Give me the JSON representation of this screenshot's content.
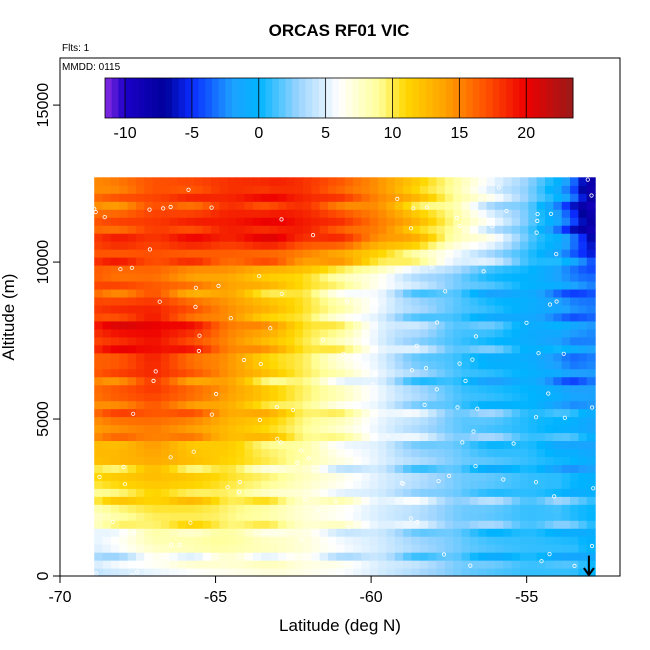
{
  "chart_data": {
    "type": "heatmap",
    "title": "ORCAS RF01 VIC",
    "corner_labels": [
      "Flts: 1",
      "MMDD: 0115"
    ],
    "xlabel": "Latitude (deg N)",
    "ylabel": "Altitude (m)",
    "xlim": [
      -70,
      -52
    ],
    "ylim": [
      0,
      16500
    ],
    "xticks": [
      -70,
      -65,
      -60,
      -55
    ],
    "xtick_labels": [
      "-70",
      "-65",
      "-60",
      "-55"
    ],
    "yticks": [
      0,
      5000,
      10000,
      15000
    ],
    "ytick_labels": [
      "0",
      "5000",
      "10000",
      "15000"
    ],
    "colorbar": {
      "range": [
        -11.5,
        23.5
      ],
      "ticks": [
        -10,
        -5,
        0,
        5,
        10,
        15,
        20
      ],
      "tick_labels": [
        "-10",
        "-5",
        "0",
        "5",
        "10",
        "15",
        "20"
      ],
      "stops": [
        {
          "v": -11.5,
          "c": "#8a2be2"
        },
        {
          "v": -10,
          "c": "#1a00c8"
        },
        {
          "v": -7,
          "c": "#00009a"
        },
        {
          "v": -5,
          "c": "#0a2cff"
        },
        {
          "v": -2,
          "c": "#1ea0ff"
        },
        {
          "v": 0,
          "c": "#00b4ff"
        },
        {
          "v": 3,
          "c": "#9cd4ff"
        },
        {
          "v": 6,
          "c": "#ffffff"
        },
        {
          "v": 9,
          "c": "#ffff9a"
        },
        {
          "v": 11,
          "c": "#ffd700"
        },
        {
          "v": 14,
          "c": "#ffa000"
        },
        {
          "v": 17,
          "c": "#ff5000"
        },
        {
          "v": 20,
          "c": "#ee0000"
        },
        {
          "v": 23.5,
          "c": "#9a1a1a"
        }
      ]
    },
    "wind_speed_grid": {
      "lat_range": [
        -68.9,
        -52.8
      ],
      "alt_range": [
        0,
        12700
      ],
      "lat_knots": [
        -68.9,
        -67,
        -65,
        -63,
        -61,
        -59,
        -57,
        -55,
        -54,
        -53.5,
        -53
      ],
      "alt_knots": [
        0,
        1000,
        2500,
        4000,
        6000,
        8000,
        9500,
        11000,
        12500
      ],
      "values": [
        [
          4,
          5,
          6,
          7,
          6,
          4,
          2,
          1,
          1,
          1,
          0
        ],
        [
          5,
          8,
          9,
          8,
          6,
          4,
          2,
          1,
          1,
          1,
          0
        ],
        [
          9,
          11,
          10,
          8,
          6,
          4,
          2,
          1,
          1,
          0,
          0
        ],
        [
          13,
          14,
          12,
          10,
          7,
          4,
          2,
          1,
          0,
          0,
          -1
        ],
        [
          16,
          18,
          15,
          11,
          8,
          4,
          1,
          0,
          -1,
          -2,
          -2
        ],
        [
          18,
          20,
          16,
          12,
          8,
          3,
          1,
          -1,
          -2,
          -3,
          -3
        ],
        [
          17,
          16,
          14,
          12,
          9,
          5,
          2,
          0,
          -1,
          -2,
          -3
        ],
        [
          17,
          18,
          19,
          20,
          18,
          14,
          8,
          2,
          -2,
          -5,
          -8
        ],
        [
          15,
          17,
          18,
          19,
          17,
          13,
          8,
          3,
          0,
          -3,
          -8
        ]
      ]
    },
    "flight_point_color": "#ffffff",
    "arrow_lat": -53,
    "arrow_alt_range": [
      650,
      0
    ]
  }
}
